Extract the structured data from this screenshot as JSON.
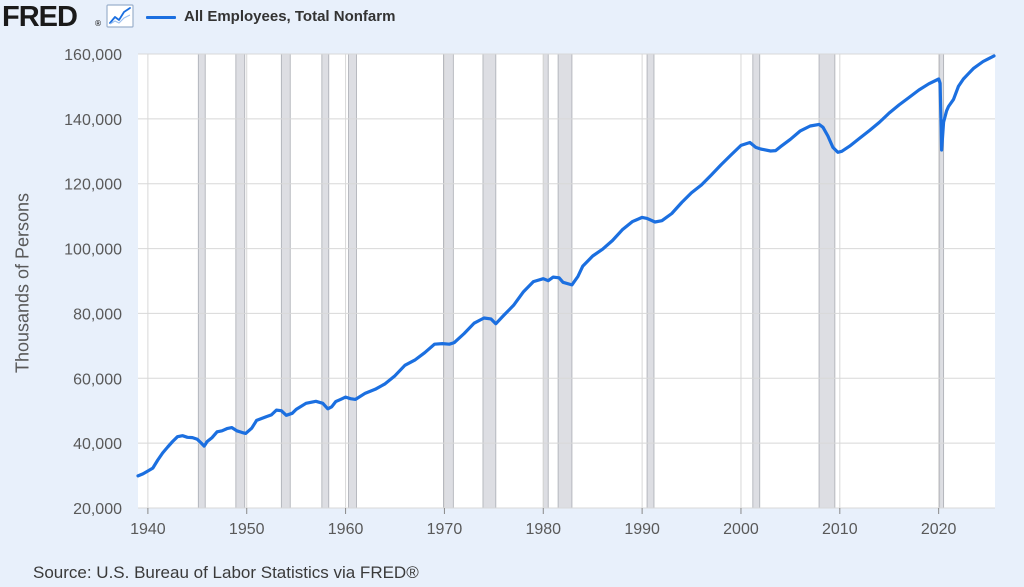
{
  "header": {
    "logo": "FRED",
    "logo_mark": "®",
    "graph_icon": "line-graph-icon"
  },
  "source": "Source: U.S. Bureau of Labor Statistics via FRED®",
  "colors": {
    "line": "#1b6fe0",
    "recession": "#dddee3",
    "background": "#e8f0fb",
    "plot_bg": "#ffffff",
    "grid": "#d8d8d8"
  },
  "chart_data": {
    "type": "line",
    "title": "",
    "xlabel": "",
    "ylabel": "Thousands of Persons",
    "xlim": [
      1939,
      2025.7
    ],
    "ylim": [
      20000,
      160000
    ],
    "yticks": [
      20000,
      40000,
      60000,
      80000,
      100000,
      120000,
      140000,
      160000
    ],
    "ytick_labels": [
      "20,000",
      "40,000",
      "60,000",
      "80,000",
      "100,000",
      "120,000",
      "140,000",
      "160,000"
    ],
    "xticks": [
      1940,
      1950,
      1960,
      1970,
      1980,
      1990,
      2000,
      2010,
      2020
    ],
    "xtick_labels": [
      "1940",
      "1950",
      "1960",
      "1970",
      "1980",
      "1990",
      "2000",
      "2010",
      "2020"
    ],
    "grid": true,
    "legend_position": "top-left",
    "recessions": [
      [
        1945.1,
        1945.8
      ],
      [
        1948.9,
        1949.8
      ],
      [
        1953.5,
        1954.4
      ],
      [
        1957.6,
        1958.3
      ],
      [
        1960.3,
        1961.1
      ],
      [
        1969.9,
        1970.9
      ],
      [
        1973.9,
        1975.2
      ],
      [
        1980.0,
        1980.5
      ],
      [
        1981.5,
        1982.9
      ],
      [
        1990.5,
        1991.2
      ],
      [
        2001.2,
        2001.9
      ],
      [
        2007.9,
        2009.5
      ],
      [
        2020.1,
        2020.4
      ]
    ],
    "series": [
      {
        "name": "All Employees, Total Nonfarm",
        "x": [
          1939.0,
          1939.5,
          1940.0,
          1940.5,
          1941.0,
          1941.5,
          1942.0,
          1942.5,
          1943.0,
          1943.5,
          1944.0,
          1944.5,
          1945.0,
          1945.4,
          1945.7,
          1946.0,
          1946.5,
          1947.0,
          1947.5,
          1948.0,
          1948.5,
          1949.0,
          1949.5,
          1949.9,
          1950.5,
          1951.0,
          1952.0,
          1952.5,
          1953.0,
          1953.5,
          1954.0,
          1954.6,
          1955.0,
          1956.0,
          1957.0,
          1957.7,
          1958.2,
          1958.6,
          1959.0,
          1959.5,
          1960.0,
          1960.5,
          1961.0,
          1962.0,
          1963.0,
          1964.0,
          1965.0,
          1966.0,
          1967.0,
          1968.0,
          1969.0,
          1969.8,
          1970.5,
          1971.0,
          1972.0,
          1973.0,
          1974.0,
          1974.7,
          1975.2,
          1976.0,
          1977.0,
          1978.0,
          1979.0,
          1980.0,
          1980.5,
          1981.0,
          1981.6,
          1982.0,
          1982.9,
          1983.5,
          1984.0,
          1985.0,
          1986.0,
          1987.0,
          1988.0,
          1989.0,
          1990.0,
          1990.5,
          1991.3,
          1992.0,
          1993.0,
          1994.0,
          1995.0,
          1996.0,
          1997.0,
          1998.0,
          1999.0,
          2000.0,
          2000.9,
          2001.5,
          2002.0,
          2003.0,
          2003.5,
          2004.0,
          2005.0,
          2006.0,
          2007.0,
          2007.9,
          2008.3,
          2008.8,
          2009.3,
          2009.8,
          2010.2,
          2011.0,
          2012.0,
          2013.0,
          2014.0,
          2015.0,
          2016.0,
          2017.0,
          2018.0,
          2019.0,
          2020.0,
          2020.15,
          2020.3,
          2020.5,
          2020.8,
          2021.0,
          2021.5,
          2022.0,
          2022.5,
          2023.0,
          2023.5,
          2024.0,
          2024.5,
          2025.0,
          2025.6
        ],
        "values": [
          29900,
          30500,
          31400,
          32300,
          34800,
          37000,
          38800,
          40500,
          42000,
          42300,
          41800,
          41700,
          41200,
          40000,
          39100,
          40500,
          41700,
          43500,
          43800,
          44500,
          44800,
          43800,
          43300,
          43000,
          44600,
          47000,
          48200,
          48700,
          50200,
          50000,
          48600,
          49200,
          50400,
          52300,
          52900,
          52300,
          50600,
          51200,
          52800,
          53500,
          54200,
          53700,
          53500,
          55400,
          56600,
          58300,
          60800,
          64000,
          65600,
          67900,
          70500,
          70700,
          70500,
          71000,
          73800,
          77000,
          78600,
          78300,
          76800,
          79400,
          82500,
          86700,
          89800,
          90700,
          90100,
          91200,
          91000,
          89600,
          88800,
          91400,
          94600,
          97700,
          99800,
          102500,
          105800,
          108300,
          109600,
          109300,
          108200,
          108600,
          110800,
          114200,
          117200,
          119600,
          122700,
          125900,
          128900,
          131800,
          132700,
          131200,
          130700,
          130100,
          130200,
          131400,
          133700,
          136300,
          137800,
          138300,
          137400,
          134700,
          131200,
          129700,
          130000,
          131600,
          134000,
          136400,
          138900,
          141800,
          144300,
          146600,
          148900,
          150800,
          152300,
          151000,
          130400,
          139000,
          142500,
          143800,
          146000,
          150000,
          152300,
          153900,
          155500,
          156600,
          157700,
          158500,
          159400
        ]
      }
    ]
  }
}
